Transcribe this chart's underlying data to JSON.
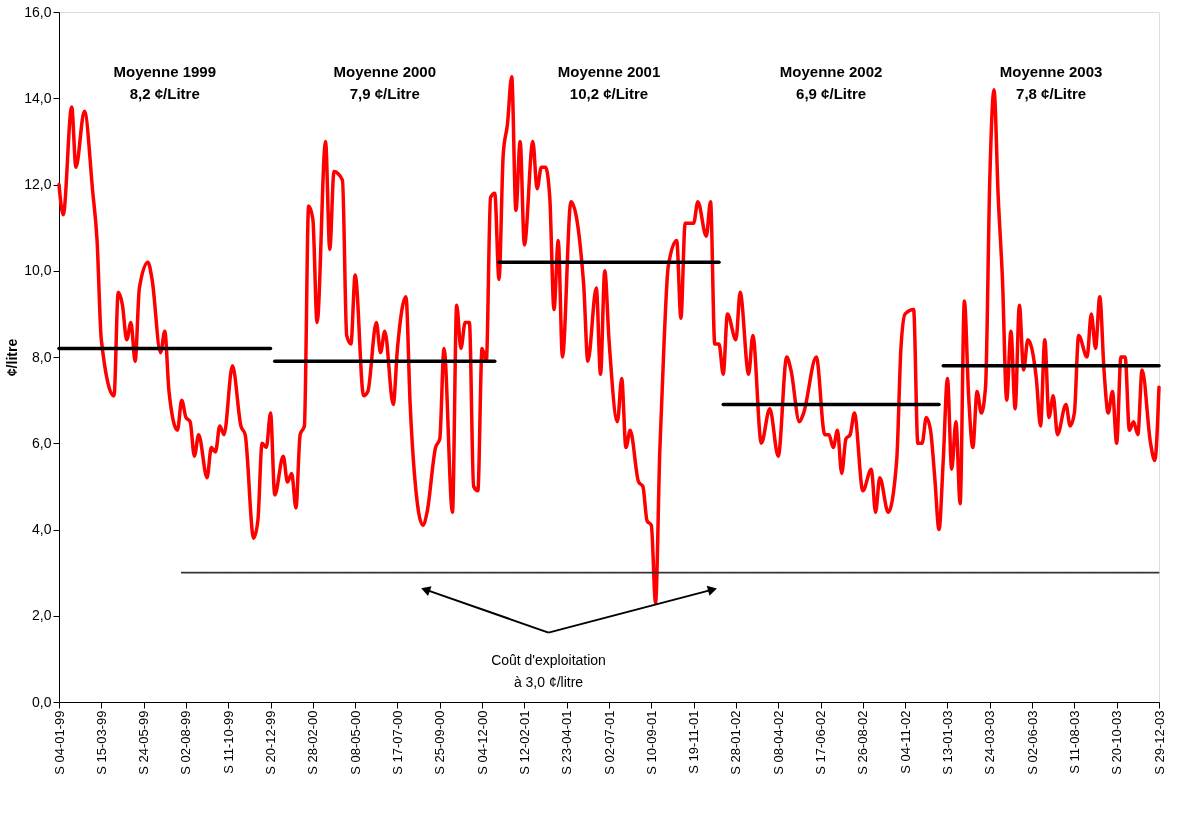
{
  "chart_data": {
    "type": "line",
    "ylabel": "¢/litre",
    "xlim": [
      "1999-01-04",
      "2003-12-29"
    ],
    "ylim": [
      0,
      16
    ],
    "yticks": [
      {
        "value": 0,
        "label": "0,0"
      },
      {
        "value": 2,
        "label": "2,0"
      },
      {
        "value": 4,
        "label": "4,0"
      },
      {
        "value": 6,
        "label": "6,0"
      },
      {
        "value": 8,
        "label": "8,0"
      },
      {
        "value": 10,
        "label": "10,0"
      },
      {
        "value": 12,
        "label": "12,0"
      },
      {
        "value": 14,
        "label": "14,0"
      },
      {
        "value": 16,
        "label": "16,0"
      }
    ],
    "xticks": [
      {
        "value": "1999-01-04",
        "label": "S 04-01-99"
      },
      {
        "value": "1999-03-15",
        "label": "S 15-03-99"
      },
      {
        "value": "1999-05-24",
        "label": "S 24-05-99"
      },
      {
        "value": "1999-08-02",
        "label": "S 02-08-99"
      },
      {
        "value": "1999-10-11",
        "label": "S 11-10-99"
      },
      {
        "value": "1999-12-20",
        "label": "S 20-12-99"
      },
      {
        "value": "2000-02-28",
        "label": "S 28-02-00"
      },
      {
        "value": "2000-05-08",
        "label": "S 08-05-00"
      },
      {
        "value": "2000-07-17",
        "label": "S 17-07-00"
      },
      {
        "value": "2000-09-25",
        "label": "S 25-09-00"
      },
      {
        "value": "2000-12-04",
        "label": "S 04-12-00"
      },
      {
        "value": "2001-02-12",
        "label": "S 12-02-01"
      },
      {
        "value": "2001-04-23",
        "label": "S 23-04-01"
      },
      {
        "value": "2001-07-02",
        "label": "S 02-07-01"
      },
      {
        "value": "2001-09-10",
        "label": "S 10-09-01"
      },
      {
        "value": "2001-11-19",
        "label": "S 19-11-01"
      },
      {
        "value": "2002-01-28",
        "label": "S 28-01-02"
      },
      {
        "value": "2002-04-08",
        "label": "S 08-04-02"
      },
      {
        "value": "2002-06-17",
        "label": "S 17-06-02"
      },
      {
        "value": "2002-08-26",
        "label": "S 26-08-02"
      },
      {
        "value": "2002-11-04",
        "label": "S 04-11-02"
      },
      {
        "value": "2003-01-13",
        "label": "S 13-01-03"
      },
      {
        "value": "2003-03-24",
        "label": "S 24-03-03"
      },
      {
        "value": "2003-06-02",
        "label": "S 02-06-03"
      },
      {
        "value": "2003-08-11",
        "label": "S 11-08-03"
      },
      {
        "value": "2003-10-20",
        "label": "S 20-10-03"
      },
      {
        "value": "2003-12-29",
        "label": "S 29-12-03"
      }
    ],
    "series": [
      {
        "color": "#ff0000",
        "x": [
          "1999-01-04",
          "1999-01-11",
          "1999-01-25",
          "1999-02-01",
          "1999-02-15",
          "1999-03-01",
          "1999-03-08",
          "1999-03-15",
          "1999-04-05",
          "1999-04-12",
          "1999-04-19",
          "1999-04-26",
          "1999-05-03",
          "1999-05-10",
          "1999-05-17",
          "1999-05-31",
          "1999-06-07",
          "1999-06-21",
          "1999-06-28",
          "1999-07-05",
          "1999-07-19",
          "1999-07-26",
          "1999-08-02",
          "1999-08-09",
          "1999-08-16",
          "1999-08-23",
          "1999-09-06",
          "1999-09-13",
          "1999-09-20",
          "1999-09-27",
          "1999-10-04",
          "1999-10-18",
          "1999-11-01",
          "1999-11-08",
          "1999-11-22",
          "1999-11-29",
          "1999-12-06",
          "1999-12-13",
          "1999-12-20",
          "1999-12-27",
          "2000-01-10",
          "2000-01-17",
          "2000-01-24",
          "2000-01-31",
          "2000-02-07",
          "2000-02-14",
          "2000-02-21",
          "2000-02-28",
          "2000-03-06",
          "2000-03-20",
          "2000-03-27",
          "2000-04-03",
          "2000-04-17",
          "2000-04-24",
          "2000-05-01",
          "2000-05-08",
          "2000-05-22",
          "2000-05-29",
          "2000-06-12",
          "2000-06-19",
          "2000-06-26",
          "2000-07-10",
          "2000-07-17",
          "2000-07-31",
          "2000-08-07",
          "2000-08-14",
          "2000-08-28",
          "2000-09-04",
          "2000-09-18",
          "2000-09-25",
          "2000-10-02",
          "2000-10-16",
          "2000-10-23",
          "2000-10-30",
          "2000-11-06",
          "2000-11-13",
          "2000-11-20",
          "2000-11-27",
          "2000-12-04",
          "2000-12-11",
          "2000-12-18",
          "2000-12-25",
          "2001-01-01",
          "2001-01-08",
          "2001-01-15",
          "2001-01-22",
          "2001-01-29",
          "2001-02-05",
          "2001-02-12",
          "2001-02-26",
          "2001-03-05",
          "2001-03-12",
          "2001-03-19",
          "2001-03-26",
          "2001-04-02",
          "2001-04-09",
          "2001-04-16",
          "2001-04-30",
          "2001-05-21",
          "2001-05-28",
          "2001-06-11",
          "2001-06-18",
          "2001-06-25",
          "2001-07-02",
          "2001-07-16",
          "2001-07-23",
          "2001-07-30",
          "2001-08-06",
          "2001-08-20",
          "2001-08-27",
          "2001-09-03",
          "2001-09-10",
          "2001-09-17",
          "2001-09-24",
          "2001-10-01",
          "2001-10-08",
          "2001-10-22",
          "2001-10-29",
          "2001-11-05",
          "2001-11-19",
          "2001-11-26",
          "2001-12-10",
          "2001-12-17",
          "2001-12-24",
          "2001-12-31",
          "2002-01-07",
          "2002-01-14",
          "2002-01-28",
          "2002-02-04",
          "2002-02-18",
          "2002-02-25",
          "2002-03-11",
          "2002-03-25",
          "2002-04-08",
          "2002-04-22",
          "2002-04-29",
          "2002-05-13",
          "2002-05-20",
          "2002-06-10",
          "2002-06-24",
          "2002-07-01",
          "2002-07-08",
          "2002-07-15",
          "2002-07-22",
          "2002-07-29",
          "2002-08-05",
          "2002-08-12",
          "2002-08-26",
          "2002-09-09",
          "2002-09-16",
          "2002-09-23",
          "2002-10-07",
          "2002-10-21",
          "2002-10-28",
          "2002-11-04",
          "2002-11-18",
          "2002-11-25",
          "2002-12-02",
          "2002-12-09",
          "2002-12-16",
          "2002-12-23",
          "2002-12-30",
          "2003-01-06",
          "2003-01-13",
          "2003-01-20",
          "2003-01-27",
          "2003-02-03",
          "2003-02-10",
          "2003-02-17",
          "2003-02-24",
          "2003-03-03",
          "2003-03-10",
          "2003-03-17",
          "2003-03-24",
          "2003-03-31",
          "2003-04-07",
          "2003-04-14",
          "2003-04-21",
          "2003-04-28",
          "2003-05-05",
          "2003-05-12",
          "2003-05-19",
          "2003-05-26",
          "2003-06-09",
          "2003-06-16",
          "2003-06-23",
          "2003-06-30",
          "2003-07-07",
          "2003-07-14",
          "2003-07-28",
          "2003-08-04",
          "2003-08-11",
          "2003-08-18",
          "2003-09-01",
          "2003-09-08",
          "2003-09-15",
          "2003-09-22",
          "2003-09-29",
          "2003-10-06",
          "2003-10-13",
          "2003-10-20",
          "2003-10-27",
          "2003-11-03",
          "2003-11-10",
          "2003-11-17",
          "2003-11-24",
          "2003-12-01",
          "2003-12-15",
          "2003-12-22",
          "2003-12-29"
        ],
        "values": [
          12.0,
          11.3,
          13.8,
          12.4,
          13.7,
          11.8,
          10.7,
          8.4,
          7.1,
          9.5,
          9.2,
          8.4,
          8.8,
          7.9,
          9.6,
          10.2,
          9.8,
          8.1,
          8.6,
          7.2,
          6.3,
          7.0,
          6.6,
          6.5,
          5.7,
          6.2,
          5.2,
          5.9,
          5.8,
          6.4,
          6.2,
          7.8,
          6.4,
          6.2,
          3.8,
          4.2,
          6.0,
          5.9,
          6.7,
          4.8,
          5.7,
          5.1,
          5.3,
          4.5,
          6.2,
          6.4,
          11.5,
          11.2,
          8.8,
          13.0,
          10.5,
          12.3,
          12.1,
          8.5,
          8.3,
          9.9,
          7.1,
          7.2,
          8.8,
          8.1,
          8.6,
          6.9,
          8.2,
          9.4,
          6.9,
          5.3,
          4.1,
          4.4,
          5.9,
          6.1,
          8.2,
          4.4,
          9.2,
          8.2,
          8.8,
          8.8,
          5.0,
          4.9,
          8.2,
          7.9,
          11.7,
          11.8,
          9.8,
          12.7,
          13.4,
          14.5,
          11.4,
          13.0,
          10.6,
          13.0,
          11.9,
          12.4,
          12.4,
          11.7,
          9.1,
          10.7,
          8.0,
          11.6,
          9.7,
          7.9,
          9.6,
          7.6,
          10.0,
          8.4,
          6.5,
          7.5,
          5.9,
          6.3,
          5.1,
          5.0,
          4.2,
          4.1,
          2.3,
          5.8,
          8.3,
          10.1,
          10.7,
          8.9,
          11.1,
          11.1,
          11.6,
          10.8,
          11.6,
          8.3,
          8.3,
          7.6,
          9.0,
          8.4,
          9.5,
          7.6,
          8.5,
          6.0,
          6.8,
          5.7,
          8.0,
          7.7,
          6.5,
          6.7,
          8.0,
          6.2,
          6.2,
          5.9,
          6.3,
          5.3,
          6.1,
          6.2,
          6.7,
          4.9,
          5.4,
          4.4,
          5.2,
          4.4,
          5.6,
          8.2,
          9.0,
          9.1,
          6.0,
          6.0,
          6.6,
          6.3,
          5.2,
          4.0,
          5.6,
          7.5,
          5.4,
          6.5,
          4.6,
          9.3,
          7.1,
          5.9,
          7.2,
          6.7,
          7.3,
          12.1,
          14.2,
          11.7,
          9.8,
          7.0,
          8.6,
          6.8,
          9.2,
          7.7,
          8.4,
          7.5,
          6.4,
          8.4,
          6.6,
          7.1,
          6.2,
          6.9,
          6.4,
          6.7,
          8.5,
          8.0,
          9.0,
          8.2,
          9.4,
          7.7,
          6.7,
          7.2,
          6.0,
          8.0,
          8.0,
          6.3,
          6.5,
          6.2,
          7.7,
          6.0,
          5.6,
          7.3
        ]
      },
      {
        "color": "#000000",
        "x": [
          "1999-01-04",
          "1999-12-20"
        ],
        "values": [
          8.2,
          8.2
        ]
      },
      {
        "color": "#000000",
        "x": [
          "1999-12-27",
          "2000-12-25"
        ],
        "values": [
          7.9,
          7.9
        ]
      },
      {
        "color": "#000000",
        "x": [
          "2001-01-01",
          "2001-12-31"
        ],
        "values": [
          10.2,
          10.2
        ]
      },
      {
        "color": "#000000",
        "x": [
          "2002-01-07",
          "2002-12-30"
        ],
        "values": [
          6.9,
          6.9
        ]
      },
      {
        "color": "#000000",
        "x": [
          "2003-01-06",
          "2003-12-29"
        ],
        "values": [
          7.8,
          7.8
        ]
      },
      {
        "color": "#333333",
        "line_style": "dotted",
        "x": [
          "1999-07-26",
          "2003-12-29"
        ],
        "values": [
          3.0,
          3.0
        ]
      }
    ],
    "annotations": [
      "Moyenne 1999\n8,2 ¢/Litre",
      "Moyenne 2000\n7,9 ¢/Litre",
      "Moyenne 2001\n10,2 ¢/Litre",
      "Moyenne 2002\n6,9 ¢/Litre",
      "Moyenne 2003\n7,8 ¢/Litre",
      "Coût d'exploitation\nà 3,0 ¢/litre"
    ]
  }
}
